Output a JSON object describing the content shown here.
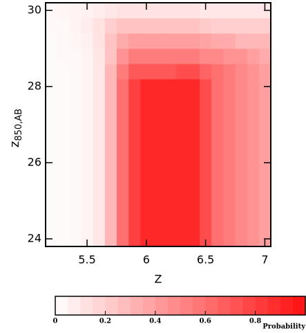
{
  "chart_data": {
    "type": "heatmap",
    "xlabel": "Z",
    "ylabel": "z",
    "ylabel_sub": "850,AB",
    "colorbar_label": "Probability",
    "xbins": [
      5.15,
      5.25,
      5.35,
      5.45,
      5.55,
      5.65,
      5.75,
      5.85,
      5.95,
      6.05,
      6.15,
      6.25,
      6.35,
      6.45,
      6.55,
      6.65,
      6.75,
      6.85,
      6.95,
      7.05
    ],
    "ybins": [
      23.8,
      24.2,
      24.6,
      25.0,
      25.4,
      25.8,
      26.2,
      26.6,
      27.0,
      27.4,
      27.8,
      28.2,
      28.6,
      29.0,
      29.4,
      29.8,
      30.2
    ],
    "z": [
      [
        0.02,
        0.02,
        0.03,
        0.05,
        0.1,
        0.3,
        0.6,
        0.8,
        0.9,
        0.9,
        0.9,
        0.9,
        0.9,
        0.75,
        0.6,
        0.55,
        0.5,
        0.45,
        0.4
      ],
      [
        0.02,
        0.02,
        0.03,
        0.05,
        0.1,
        0.3,
        0.6,
        0.8,
        0.9,
        0.9,
        0.9,
        0.9,
        0.9,
        0.75,
        0.6,
        0.55,
        0.5,
        0.45,
        0.4
      ],
      [
        0.02,
        0.02,
        0.03,
        0.05,
        0.1,
        0.3,
        0.6,
        0.8,
        0.9,
        0.9,
        0.9,
        0.9,
        0.9,
        0.75,
        0.6,
        0.55,
        0.5,
        0.45,
        0.4
      ],
      [
        0.02,
        0.02,
        0.03,
        0.05,
        0.1,
        0.3,
        0.6,
        0.8,
        0.9,
        0.9,
        0.9,
        0.9,
        0.9,
        0.75,
        0.6,
        0.55,
        0.5,
        0.45,
        0.4
      ],
      [
        0.02,
        0.02,
        0.03,
        0.05,
        0.1,
        0.3,
        0.6,
        0.8,
        0.9,
        0.9,
        0.9,
        0.9,
        0.9,
        0.75,
        0.6,
        0.55,
        0.5,
        0.45,
        0.4
      ],
      [
        0.02,
        0.02,
        0.03,
        0.05,
        0.1,
        0.3,
        0.6,
        0.8,
        0.9,
        0.9,
        0.9,
        0.9,
        0.9,
        0.75,
        0.6,
        0.55,
        0.5,
        0.45,
        0.4
      ],
      [
        0.02,
        0.02,
        0.03,
        0.05,
        0.1,
        0.3,
        0.6,
        0.8,
        0.9,
        0.9,
        0.9,
        0.9,
        0.9,
        0.75,
        0.6,
        0.55,
        0.5,
        0.45,
        0.4
      ],
      [
        0.02,
        0.02,
        0.03,
        0.05,
        0.1,
        0.3,
        0.6,
        0.8,
        0.9,
        0.9,
        0.9,
        0.9,
        0.9,
        0.75,
        0.6,
        0.55,
        0.5,
        0.45,
        0.4
      ],
      [
        0.02,
        0.02,
        0.03,
        0.05,
        0.1,
        0.3,
        0.6,
        0.8,
        0.9,
        0.9,
        0.9,
        0.9,
        0.9,
        0.75,
        0.6,
        0.55,
        0.5,
        0.45,
        0.4
      ],
      [
        0.02,
        0.02,
        0.03,
        0.05,
        0.1,
        0.3,
        0.6,
        0.8,
        0.9,
        0.9,
        0.9,
        0.9,
        0.9,
        0.75,
        0.6,
        0.55,
        0.5,
        0.45,
        0.4
      ],
      [
        0.02,
        0.02,
        0.03,
        0.05,
        0.1,
        0.3,
        0.6,
        0.8,
        0.9,
        0.9,
        0.9,
        0.9,
        0.9,
        0.75,
        0.6,
        0.55,
        0.5,
        0.45,
        0.4
      ],
      [
        0.02,
        0.02,
        0.03,
        0.05,
        0.1,
        0.3,
        0.55,
        0.7,
        0.7,
        0.7,
        0.7,
        0.75,
        0.75,
        0.65,
        0.6,
        0.55,
        0.5,
        0.45,
        0.4
      ],
      [
        0.02,
        0.03,
        0.03,
        0.05,
        0.1,
        0.25,
        0.45,
        0.55,
        0.55,
        0.55,
        0.55,
        0.55,
        0.55,
        0.5,
        0.5,
        0.45,
        0.45,
        0.4,
        0.35
      ],
      [
        0.02,
        0.03,
        0.04,
        0.06,
        0.12,
        0.25,
        0.35,
        0.4,
        0.4,
        0.4,
        0.4,
        0.4,
        0.4,
        0.38,
        0.35,
        0.35,
        0.3,
        0.3,
        0.3
      ],
      [
        0.03,
        0.03,
        0.05,
        0.08,
        0.12,
        0.2,
        0.25,
        0.25,
        0.25,
        0.25,
        0.25,
        0.25,
        0.25,
        0.22,
        0.2,
        0.2,
        0.2,
        0.2,
        0.2
      ],
      [
        0.03,
        0.04,
        0.05,
        0.06,
        0.08,
        0.1,
        0.12,
        0.12,
        0.12,
        0.12,
        0.12,
        0.12,
        0.12,
        0.1,
        0.1,
        0.1,
        0.1,
        0.1,
        0.1
      ]
    ],
    "xlim": [
      5.15,
      7.05
    ],
    "xticks": [
      5.5,
      6,
      6.5,
      7
    ],
    "ylim": [
      23.8,
      30.2
    ],
    "yticks": [
      24,
      26,
      28,
      30
    ],
    "clim": [
      0,
      1
    ],
    "cticks": [
      0,
      0.2,
      0.4,
      0.6,
      0.8
    ],
    "colormap": [
      "#ffffff",
      "#ff1010"
    ]
  }
}
